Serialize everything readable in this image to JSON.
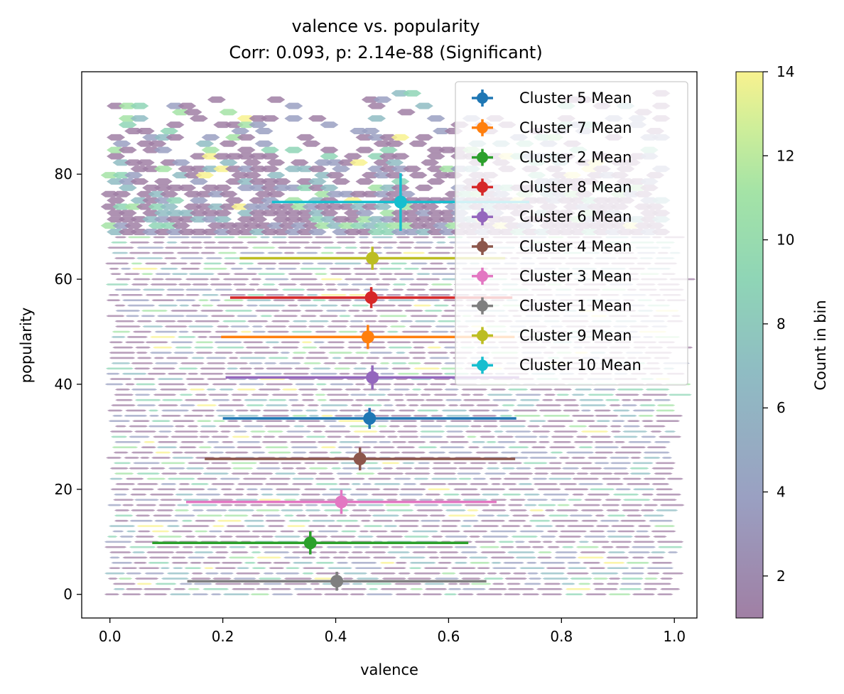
{
  "chart_data": {
    "type": "scatter",
    "title": "valence vs. popularity",
    "subtitle": "Corr: 0.093, p: 2.14e-88 (Significant)",
    "xlabel": "valence",
    "ylabel": "popularity",
    "xlim": [
      -0.05,
      1.04
    ],
    "ylim": [
      -4.5,
      99.5
    ],
    "xticks": [
      0.0,
      0.2,
      0.4,
      0.6,
      0.8,
      1.0
    ],
    "xtick_labels": [
      "0.0",
      "0.2",
      "0.4",
      "0.6",
      "0.8",
      "1.0"
    ],
    "yticks": [
      0,
      20,
      40,
      60,
      80
    ],
    "ytick_labels": [
      "0",
      "20",
      "40",
      "60",
      "80"
    ],
    "grid": false,
    "legend_position": "top-right",
    "background": "hexbin density of valence vs. popularity (count per bin)",
    "colorbar": {
      "label": "Count in bin",
      "range": [
        1,
        14
      ],
      "ticks": [
        2,
        4,
        6,
        8,
        10,
        12,
        14
      ],
      "tick_labels": [
        "2",
        "4",
        "6",
        "8",
        "10",
        "12",
        "14"
      ],
      "colors": [
        "#a07fa4",
        "#9aa0c2",
        "#8fbcc3",
        "#8fd5b6",
        "#a4e3a6",
        "#cfee99",
        "#f8f28f"
      ]
    },
    "series": [
      {
        "name": "Cluster 5 Mean",
        "color": "#1f77b4",
        "x": 0.46,
        "y": 33.5,
        "xerr": 0.26,
        "yerr": 2.0
      },
      {
        "name": "Cluster 7 Mean",
        "color": "#ff7f0e",
        "x": 0.457,
        "y": 49.0,
        "xerr": 0.26,
        "yerr": 2.3
      },
      {
        "name": "Cluster 2 Mean",
        "color": "#2ca02c",
        "x": 0.355,
        "y": 9.8,
        "xerr": 0.28,
        "yerr": 2.2
      },
      {
        "name": "Cluster 8 Mean",
        "color": "#d62728",
        "x": 0.463,
        "y": 56.5,
        "xerr": 0.25,
        "yerr": 2.0
      },
      {
        "name": "Cluster 6 Mean",
        "color": "#9467bd",
        "x": 0.465,
        "y": 41.3,
        "xerr": 0.26,
        "yerr": 2.3
      },
      {
        "name": "Cluster 4 Mean",
        "color": "#8c564b",
        "x": 0.443,
        "y": 25.8,
        "xerr": 0.275,
        "yerr": 2.2
      },
      {
        "name": "Cluster 3 Mean",
        "color": "#e377c2",
        "x": 0.41,
        "y": 17.6,
        "xerr": 0.275,
        "yerr": 2.3
      },
      {
        "name": "Cluster 1 Mean",
        "color": "#7f7f7f",
        "x": 0.402,
        "y": 2.5,
        "xerr": 0.265,
        "yerr": 1.8
      },
      {
        "name": "Cluster 9 Mean",
        "color": "#bcbd22",
        "x": 0.465,
        "y": 64.0,
        "xerr": 0.235,
        "yerr": 2.2
      },
      {
        "name": "Cluster 10 Mean",
        "color": "#17becf",
        "x": 0.515,
        "y": 74.7,
        "xerr": 0.228,
        "yerr": 5.5
      }
    ]
  }
}
